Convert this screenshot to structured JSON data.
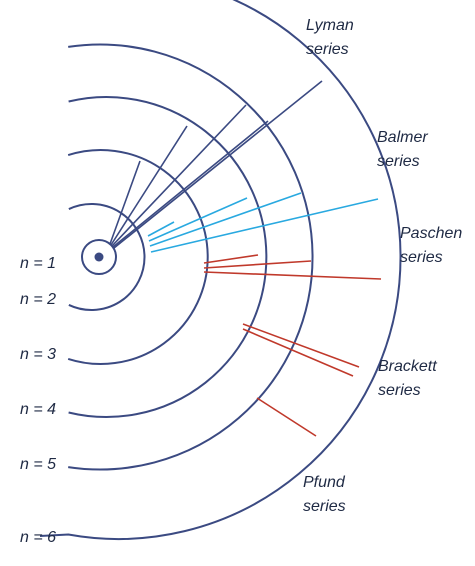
{
  "colors": {
    "orbit": "#3b4a82",
    "lyman": "#3b4a82",
    "balmer": "#29a9e0",
    "transition": "#c0392b",
    "text": "#1f2a44"
  },
  "levels": [
    {
      "id": "n1",
      "label": "n = 1"
    },
    {
      "id": "n2",
      "label": "n = 2"
    },
    {
      "id": "n3",
      "label": "n = 3"
    },
    {
      "id": "n4",
      "label": "n = 4"
    },
    {
      "id": "n5",
      "label": "n = 5"
    },
    {
      "id": "n6",
      "label": "n = 6"
    }
  ],
  "series": [
    {
      "id": "lyman",
      "line1": "Lyman",
      "line2": "series",
      "lower_level": 1,
      "upper_levels": [
        2,
        3,
        4,
        5,
        6
      ]
    },
    {
      "id": "balmer",
      "line1": "Balmer",
      "line2": "series",
      "lower_level": 2,
      "upper_levels": [
        3,
        4,
        5,
        6
      ]
    },
    {
      "id": "paschen",
      "line1": "Paschen",
      "line2": "series",
      "lower_level": 3,
      "upper_levels": [
        4,
        5,
        6
      ]
    },
    {
      "id": "brackett",
      "line1": "Brackett",
      "line2": "series",
      "lower_level": 4,
      "upper_levels": [
        5,
        6
      ]
    },
    {
      "id": "pfund",
      "line1": "Pfund",
      "line2": "series",
      "lower_level": 5,
      "upper_levels": [
        6
      ]
    }
  ]
}
